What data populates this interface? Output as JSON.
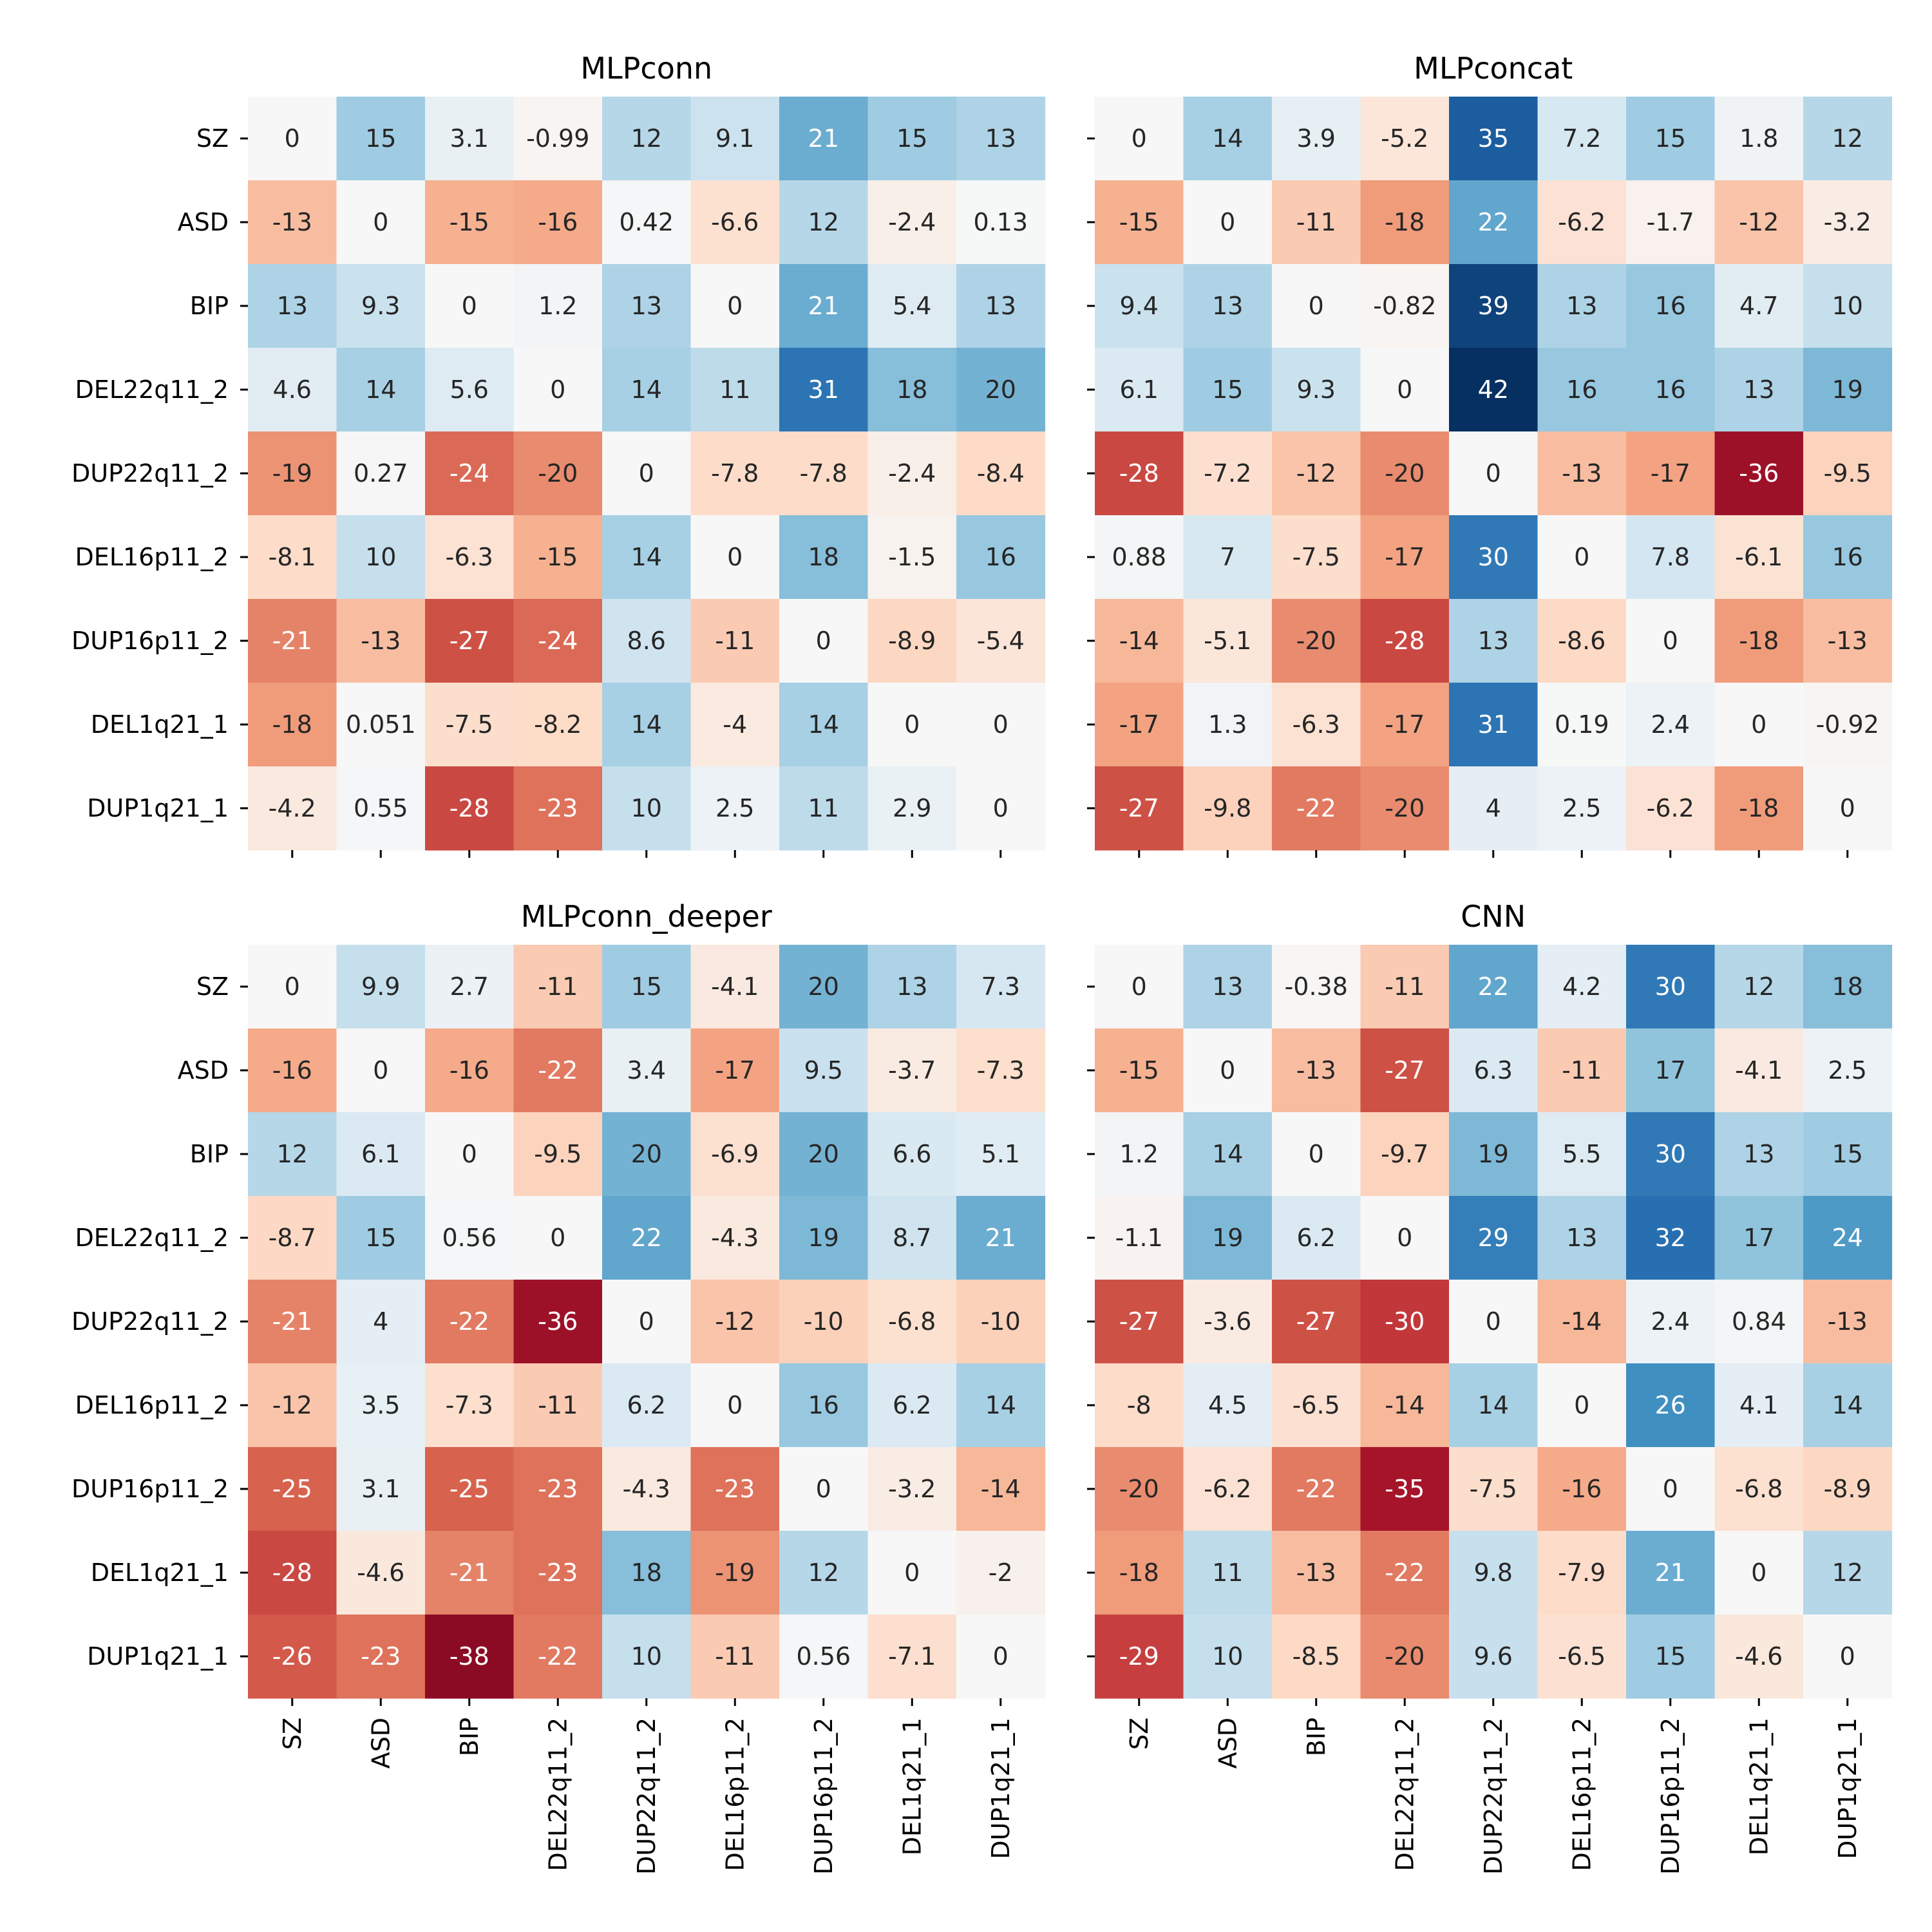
{
  "chart_data": [
    {
      "type": "heatmap",
      "title": "MLPconn",
      "rows": [
        "SZ",
        "ASD",
        "BIP",
        "DEL22q11_2",
        "DUP22q11_2",
        "DEL16p11_2",
        "DUP16p11_2",
        "DEL1q21_1",
        "DUP1q21_1"
      ],
      "columns": [
        "SZ",
        "ASD",
        "BIP",
        "DEL22q11_2",
        "DUP22q11_2",
        "DEL16p11_2",
        "DUP16p11_2",
        "DEL1q21_1",
        "DUP1q21_1"
      ],
      "values": [
        [
          0,
          15,
          3.1,
          -0.99,
          12,
          9.1,
          21,
          15,
          13
        ],
        [
          -13,
          0,
          -15,
          -16,
          0.42,
          -6.6,
          12,
          -2.4,
          0.13
        ],
        [
          13,
          9.3,
          0,
          1.2,
          13,
          0,
          21,
          5.4,
          13
        ],
        [
          4.6,
          14,
          5.6,
          0,
          14,
          11,
          31,
          18,
          20
        ],
        [
          -19,
          0.27,
          -24,
          -20,
          0,
          -7.8,
          -7.8,
          -2.4,
          -8.4
        ],
        [
          -8.1,
          10,
          -6.3,
          -15,
          14,
          0,
          18,
          -1.5,
          16
        ],
        [
          -21,
          -13,
          -27,
          -24,
          8.6,
          -11,
          0,
          -8.9,
          -5.4
        ],
        [
          -18,
          0.051,
          -7.5,
          -8.2,
          14,
          -4,
          14,
          0,
          0
        ],
        [
          -4.2,
          0.55,
          -28,
          -23,
          10,
          2.5,
          11,
          2.9,
          0
        ]
      ],
      "show_row_labels": true,
      "show_col_labels": false
    },
    {
      "type": "heatmap",
      "title": "MLPconcat",
      "rows": [
        "SZ",
        "ASD",
        "BIP",
        "DEL22q11_2",
        "DUP22q11_2",
        "DEL16p11_2",
        "DUP16p11_2",
        "DEL1q21_1",
        "DUP1q21_1"
      ],
      "columns": [
        "SZ",
        "ASD",
        "BIP",
        "DEL22q11_2",
        "DUP22q11_2",
        "DEL16p11_2",
        "DUP16p11_2",
        "DEL1q21_1",
        "DUP1q21_1"
      ],
      "values": [
        [
          0,
          14,
          3.9,
          -5.2,
          35,
          7.2,
          15,
          1.8,
          12
        ],
        [
          -15,
          0,
          -11,
          -18,
          22,
          -6.2,
          -1.7,
          -12,
          -3.2
        ],
        [
          9.4,
          13,
          0,
          -0.82,
          39,
          13,
          16,
          4.7,
          10
        ],
        [
          6.1,
          15,
          9.3,
          0,
          42,
          16,
          16,
          13,
          19
        ],
        [
          -28,
          -7.2,
          -12,
          -20,
          0,
          -13,
          -17,
          -36,
          -9.5
        ],
        [
          0.88,
          7,
          -7.5,
          -17,
          30,
          0,
          7.8,
          -6.1,
          16
        ],
        [
          -14,
          -5.1,
          -20,
          -28,
          13,
          -8.6,
          0,
          -18,
          -13
        ],
        [
          -17,
          1.3,
          -6.3,
          -17,
          31,
          0.19,
          2.4,
          0,
          -0.92
        ],
        [
          -27,
          -9.8,
          -22,
          -20,
          4,
          2.5,
          -6.2,
          -18,
          0
        ]
      ],
      "show_row_labels": false,
      "show_col_labels": false
    },
    {
      "type": "heatmap",
      "title": "MLPconn_deeper",
      "rows": [
        "SZ",
        "ASD",
        "BIP",
        "DEL22q11_2",
        "DUP22q11_2",
        "DEL16p11_2",
        "DUP16p11_2",
        "DEL1q21_1",
        "DUP1q21_1"
      ],
      "columns": [
        "SZ",
        "ASD",
        "BIP",
        "DEL22q11_2",
        "DUP22q11_2",
        "DEL16p11_2",
        "DUP16p11_2",
        "DEL1q21_1",
        "DUP1q21_1"
      ],
      "values": [
        [
          0,
          9.9,
          2.7,
          -11,
          15,
          -4.1,
          20,
          13,
          7.3
        ],
        [
          -16,
          0,
          -16,
          -22,
          3.4,
          -17,
          9.5,
          -3.7,
          -7.3
        ],
        [
          12,
          6.1,
          0,
          -9.5,
          20,
          -6.9,
          20,
          6.6,
          5.1
        ],
        [
          -8.7,
          15,
          0.56,
          0,
          22,
          -4.3,
          19,
          8.7,
          21
        ],
        [
          -21,
          4,
          -22,
          -36,
          0,
          -12,
          -10,
          -6.8,
          -10
        ],
        [
          -12,
          3.5,
          -7.3,
          -11,
          6.2,
          0,
          16,
          6.2,
          14
        ],
        [
          -25,
          3.1,
          -25,
          -23,
          -4.3,
          -23,
          0,
          -3.2,
          -14
        ],
        [
          -28,
          -4.6,
          -21,
          -23,
          18,
          -19,
          12,
          0,
          -2
        ],
        [
          -26,
          -23,
          -38,
          -22,
          10,
          -11,
          0.56,
          -7.1,
          0
        ]
      ],
      "show_row_labels": true,
      "show_col_labels": true
    },
    {
      "type": "heatmap",
      "title": "CNN",
      "rows": [
        "SZ",
        "ASD",
        "BIP",
        "DEL22q11_2",
        "DUP22q11_2",
        "DEL16p11_2",
        "DUP16p11_2",
        "DEL1q21_1",
        "DUP1q21_1"
      ],
      "columns": [
        "SZ",
        "ASD",
        "BIP",
        "DEL22q11_2",
        "DUP22q11_2",
        "DEL16p11_2",
        "DUP16p11_2",
        "DEL1q21_1",
        "DUP1q21_1"
      ],
      "values": [
        [
          0,
          13,
          -0.38,
          -11,
          22,
          4.2,
          30,
          12,
          18
        ],
        [
          -15,
          0,
          -13,
          -27,
          6.3,
          -11,
          17,
          -4.1,
          2.5
        ],
        [
          1.2,
          14,
          0,
          -9.7,
          19,
          5.5,
          30,
          13,
          15
        ],
        [
          -1.1,
          19,
          6.2,
          0,
          29,
          13,
          32,
          17,
          24
        ],
        [
          -27,
          -3.6,
          -27,
          -30,
          0,
          -14,
          2.4,
          0.84,
          -13
        ],
        [
          -8,
          4.5,
          -6.5,
          -14,
          14,
          0,
          26,
          4.1,
          14
        ],
        [
          -20,
          -6.2,
          -22,
          -35,
          -7.5,
          -16,
          0,
          -6.8,
          -8.9
        ],
        [
          -18,
          11,
          -13,
          -22,
          9.8,
          -7.9,
          21,
          0,
          12
        ],
        [
          -29,
          10,
          -8.5,
          -20,
          9.6,
          -6.5,
          15,
          -4.6,
          0
        ]
      ],
      "show_row_labels": false,
      "show_col_labels": true
    }
  ],
  "colormap": "RdBu",
  "color_range": [
    -38,
    42
  ],
  "colors": {
    "negative_extreme": "#67001f",
    "neutral": "#f7f7f7",
    "positive_extreme": "#053061"
  }
}
